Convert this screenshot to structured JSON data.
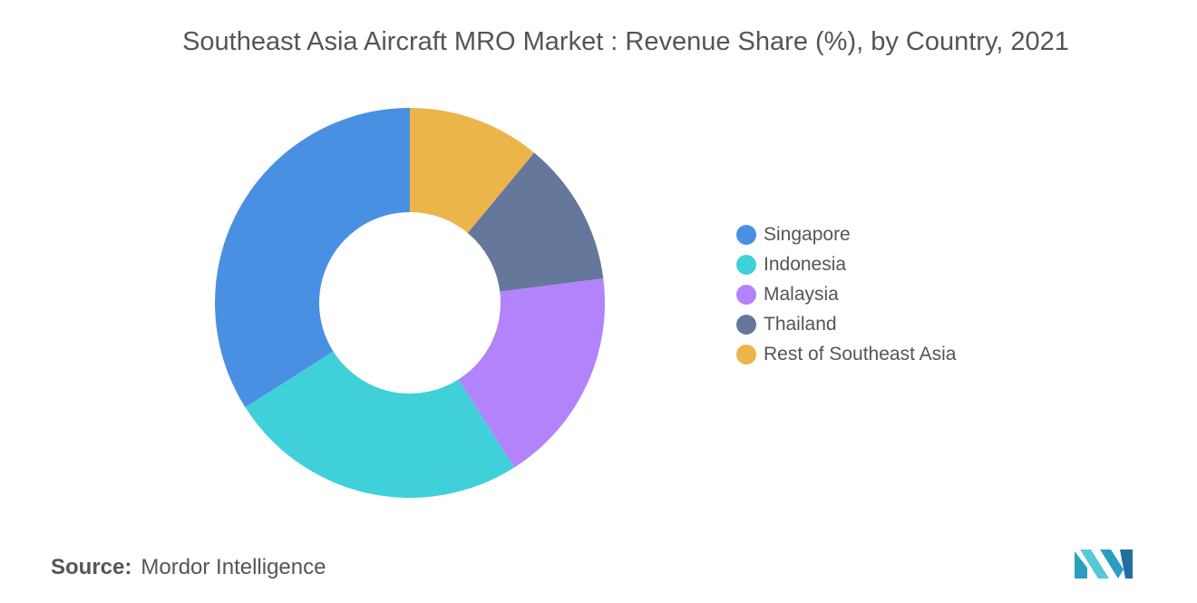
{
  "chart_data": {
    "type": "pie",
    "title": "Southeast Asia Aircraft MRO Market : Revenue Share (%), by Country, 2021",
    "categories": [
      "Singapore",
      "Indonesia",
      "Malaysia",
      "Thailand",
      "Rest of Southeast Asia"
    ],
    "values": [
      34,
      25,
      18,
      12,
      11
    ],
    "colors": [
      "#4a90e2",
      "#40d0da",
      "#b283fb",
      "#65779b",
      "#ecb54a"
    ],
    "donut": true,
    "start_angle_deg": 90,
    "direction": "counterclockwise",
    "legend_position": "right"
  },
  "source": {
    "label": "Source:",
    "text": "Mordor Intelligence"
  },
  "logo": {
    "name": "mordor-intelligence-logo",
    "colors": [
      "#2a9ec0",
      "#56c8d8",
      "#1f6f9f"
    ]
  }
}
